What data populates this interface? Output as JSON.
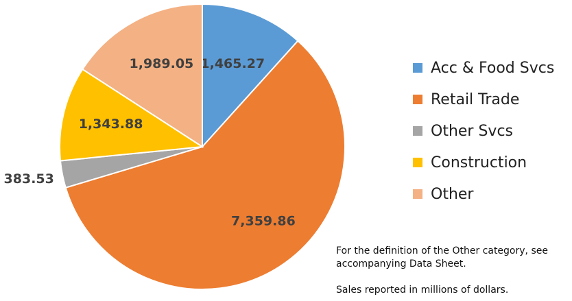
{
  "chart_data": {
    "type": "pie",
    "categories": [
      "Acc & Food Svcs",
      "Retail Trade",
      "Other Svcs",
      "Construction",
      "Other"
    ],
    "values": [
      1465.27,
      7359.86,
      383.53,
      1343.88,
      1989.05
    ],
    "labels": [
      "1,465.27",
      "7,359.86",
      "383.53",
      "1,343.88",
      "1,989.05"
    ],
    "colors": [
      "#5B9BD5",
      "#ED7D31",
      "#A5A5A5",
      "#FFC000",
      "#F4B183"
    ],
    "start_angle_deg": 0,
    "direction": "clockwise",
    "legend_position": "right"
  },
  "footnotes": {
    "definition": "For the definition of the Other category, see accompanying Data Sheet.",
    "units": "Sales reported in millions of dollars."
  }
}
